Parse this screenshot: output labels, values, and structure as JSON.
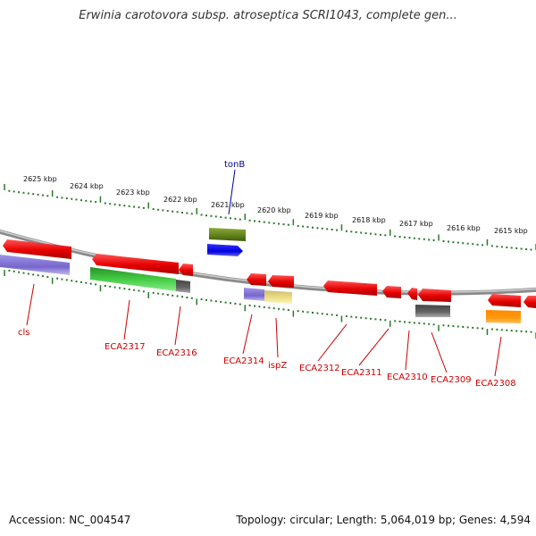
{
  "title": "Erwinia carotovora subsp. atroseptica SCRI1043, complete gen...",
  "ruler": [
    "2625 kbp",
    "2624 kbp",
    "2623 kbp",
    "2622 kbp",
    "2621 kbp",
    "2620 kbp",
    "2619 kbp",
    "2618 kbp",
    "2617 kbp",
    "2616 kbp",
    "2615 kbp"
  ],
  "genes": [
    "cls",
    "ECA2317",
    "ECA2316",
    "tonB",
    "ECA2314",
    "ispZ",
    "ECA2312",
    "ECA2311",
    "ECA2310",
    "ECA2309",
    "ECA2308"
  ],
  "footer": {
    "accession": "Accession: NC_004547",
    "stats": "Topology: circular; Length: 5,064,019 bp; Genes: 4,594"
  },
  "colors": {
    "red": "#e60000",
    "purple": "#7766cc",
    "green": "#33aa33",
    "olive": "#5f7f1a",
    "blue": "#0000dd",
    "gray": "#666666",
    "yellow": "#e8d878",
    "orange": "#ff8800",
    "label_red": "#cc0000",
    "label_blue": "#000099",
    "ruler_green": "#2b7a2b"
  }
}
